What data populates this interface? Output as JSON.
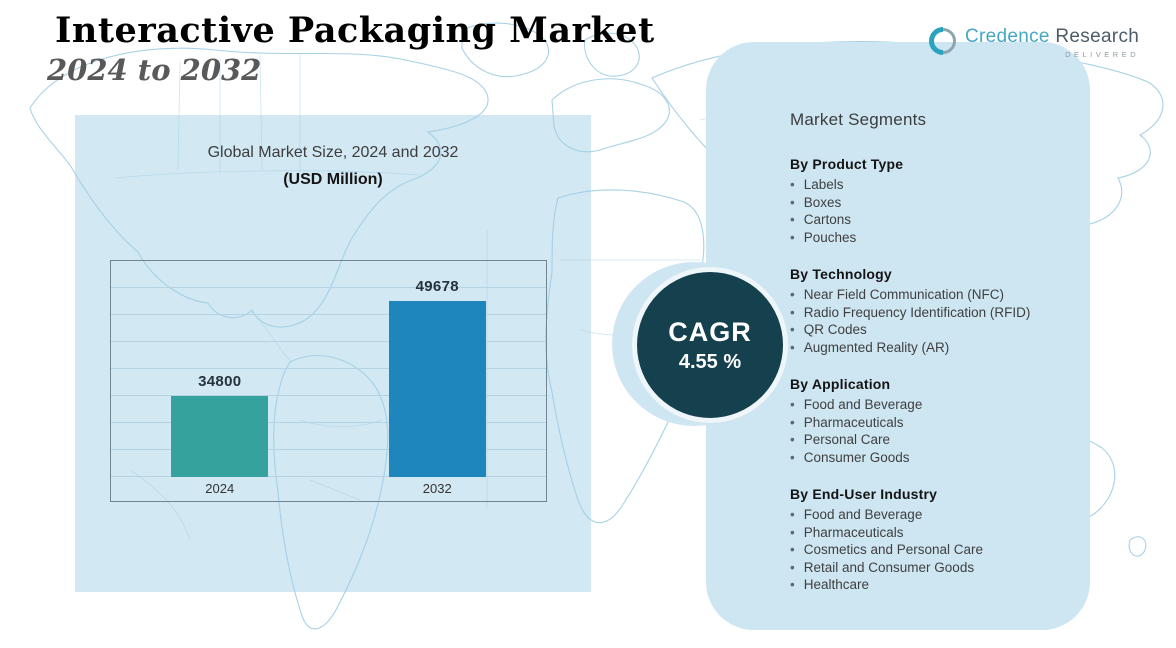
{
  "header": {
    "title": "Interactive Packaging Market",
    "subtitle": "2024 to 2032"
  },
  "logo": {
    "brand_primary": "Credence",
    "brand_secondary": "Research",
    "tagline": "Delivered"
  },
  "chart_data": {
    "type": "bar",
    "title": "Global Market Size, 2024 and 2032",
    "subtitle": "(USD Million)",
    "categories": [
      "2024",
      "2032"
    ],
    "values": [
      34800,
      49678
    ],
    "ylim": [
      22000,
      56000
    ],
    "grid": true,
    "legend": false,
    "bar_colors": [
      "#35a29e",
      "#1e86bc"
    ]
  },
  "cagr": {
    "label": "CAGR",
    "value": "4.55 %"
  },
  "segments": {
    "title": "Market Segments",
    "groups": [
      {
        "heading": "By Product Type",
        "items": [
          "Labels",
          "Boxes",
          "Cartons",
          "Pouches"
        ]
      },
      {
        "heading": "By Technology",
        "items": [
          "Near Field Communication (NFC)",
          "Radio Frequency Identification (RFID)",
          "QR Codes",
          "Augmented Reality (AR)"
        ]
      },
      {
        "heading": "By Application",
        "items": [
          "Food and Beverage",
          "Pharmaceuticals",
          "Personal Care",
          "Consumer Goods"
        ]
      },
      {
        "heading": "By End-User Industry",
        "items": [
          "Food and Beverage",
          "Pharmaceuticals",
          "Cosmetics and Personal Care",
          "Retail and Consumer Goods",
          "Healthcare"
        ]
      }
    ]
  },
  "colors": {
    "panel": "#cde6f2",
    "backdrop": "#d2e8f3",
    "accent_teal": "#35a29e",
    "accent_blue": "#1e86bc",
    "cagr_circle": "#15414f",
    "map_line": "#a3cfe5"
  }
}
